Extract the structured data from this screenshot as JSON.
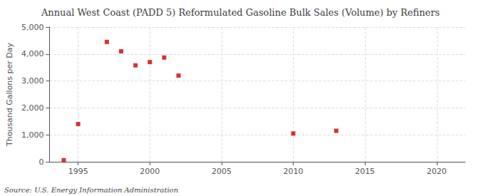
{
  "chart_data": {
    "type": "scatter",
    "title": "Annual West Coast (PADD 5) Reformulated Gasoline Bulk Sales (Volume) by Refiners",
    "ylabel": "Thousand Gallons per Day",
    "annotations": [
      "Source: U.S. Energy Information Administration"
    ],
    "x": [
      1994,
      1995,
      1997,
      1998,
      1999,
      2000,
      2001,
      2002,
      2010,
      2013
    ],
    "values": [
      60,
      1400,
      4450,
      4100,
      3580,
      3700,
      3870,
      3200,
      1050,
      1150
    ],
    "color": "#cc0000",
    "marker": "square",
    "xlim": [
      1993,
      2022
    ],
    "ylim": [
      0,
      5000
    ],
    "xticks": [
      1995,
      2000,
      2005,
      2010,
      2015,
      2020
    ],
    "yticks": [
      0,
      {
        "value": 1000,
        "label": "1,000"
      },
      {
        "value": 2000,
        "label": "2,000"
      },
      {
        "value": 3000,
        "label": "3,000"
      },
      {
        "value": 4000,
        "label": "4,000"
      },
      {
        "value": 5000,
        "label": "5,000"
      }
    ],
    "grid": true
  }
}
